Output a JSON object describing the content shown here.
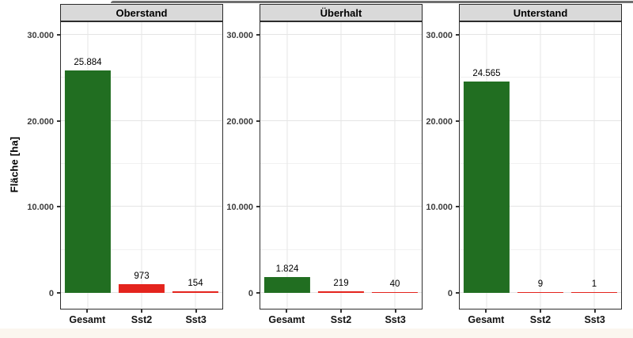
{
  "figure": {
    "ylabel": "Fläche [ha]",
    "colors": {
      "bar_green": "#216e21",
      "bar_red": "#e4241d",
      "strip_background": "#d9d9d9",
      "panel_border": "#2e2e2e",
      "gridline_major": "#e4e4e4",
      "gridline_minor": "#f1f1f1"
    }
  },
  "chart_data": [
    {
      "type": "bar",
      "title": "Oberstand",
      "categories": [
        "Gesamt",
        "Sst2",
        "Sst3"
      ],
      "values": [
        25884,
        973,
        154
      ],
      "value_labels": [
        "25.884",
        "973",
        "154"
      ],
      "bar_colors": [
        "#216e21",
        "#e4241d",
        "#e4241d"
      ],
      "xlabel": "",
      "ylabel": "Fläche [ha]",
      "ylim": [
        0,
        30000
      ],
      "yticks": [
        0,
        10000,
        20000,
        30000
      ],
      "yticks_minor": [
        5000,
        15000,
        25000
      ],
      "ytick_labels": [
        "0",
        "10.000",
        "20.000",
        "30.000"
      ],
      "grid": "on",
      "legend": "none"
    },
    {
      "type": "bar",
      "title": "Überhalt",
      "categories": [
        "Gesamt",
        "Sst2",
        "Sst3"
      ],
      "values": [
        1824,
        219,
        40
      ],
      "value_labels": [
        "1.824",
        "219",
        "40"
      ],
      "bar_colors": [
        "#216e21",
        "#e4241d",
        "#e4241d"
      ],
      "xlabel": "",
      "ylabel": "Fläche [ha]",
      "ylim": [
        0,
        30000
      ],
      "yticks": [
        0,
        10000,
        20000,
        30000
      ],
      "yticks_minor": [
        5000,
        15000,
        25000
      ],
      "ytick_labels": [
        "0",
        "10.000",
        "20.000",
        "30.000"
      ],
      "grid": "on",
      "legend": "none"
    },
    {
      "type": "bar",
      "title": "Unterstand",
      "categories": [
        "Gesamt",
        "Sst2",
        "Sst3"
      ],
      "values": [
        24565,
        9,
        1
      ],
      "value_labels": [
        "24.565",
        "9",
        "1"
      ],
      "bar_colors": [
        "#216e21",
        "#e4241d",
        "#e4241d"
      ],
      "xlabel": "",
      "ylabel": "Fläche [ha]",
      "ylim": [
        0,
        30000
      ],
      "yticks": [
        0,
        10000,
        20000,
        30000
      ],
      "yticks_minor": [
        5000,
        15000,
        25000
      ],
      "ytick_labels": [
        "0",
        "10.000",
        "20.000",
        "30.000"
      ],
      "grid": "on",
      "legend": "none"
    }
  ]
}
